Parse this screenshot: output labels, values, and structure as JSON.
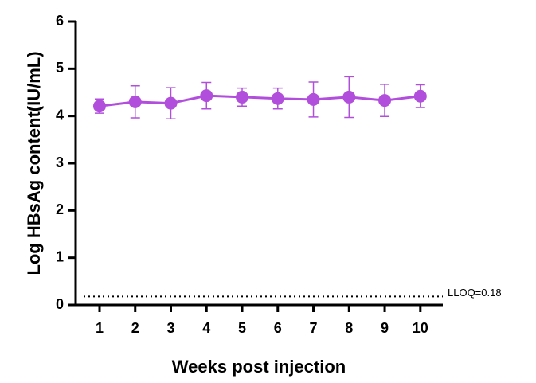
{
  "chart_data": {
    "type": "line",
    "x_label": "Weeks post injection",
    "y_label": "Log HBsAg content(IU/mL)",
    "x": [
      1,
      2,
      3,
      4,
      5,
      6,
      7,
      8,
      9,
      10
    ],
    "values": [
      4.21,
      4.3,
      4.27,
      4.43,
      4.4,
      4.37,
      4.35,
      4.4,
      4.33,
      4.42
    ],
    "errors": [
      0.15,
      0.34,
      0.33,
      0.28,
      0.19,
      0.22,
      0.37,
      0.43,
      0.34,
      0.24
    ],
    "color": "#b14fdc",
    "xlim": [
      0.33,
      10.63
    ],
    "xticks": [
      1,
      2,
      3,
      4,
      5,
      6,
      7,
      8,
      9,
      10
    ],
    "ylim": [
      0,
      6
    ],
    "yticks": [
      0,
      1,
      2,
      3,
      4,
      5,
      6
    ],
    "reference_line": {
      "value": 0.18,
      "label": "LLOQ=0.18"
    }
  }
}
